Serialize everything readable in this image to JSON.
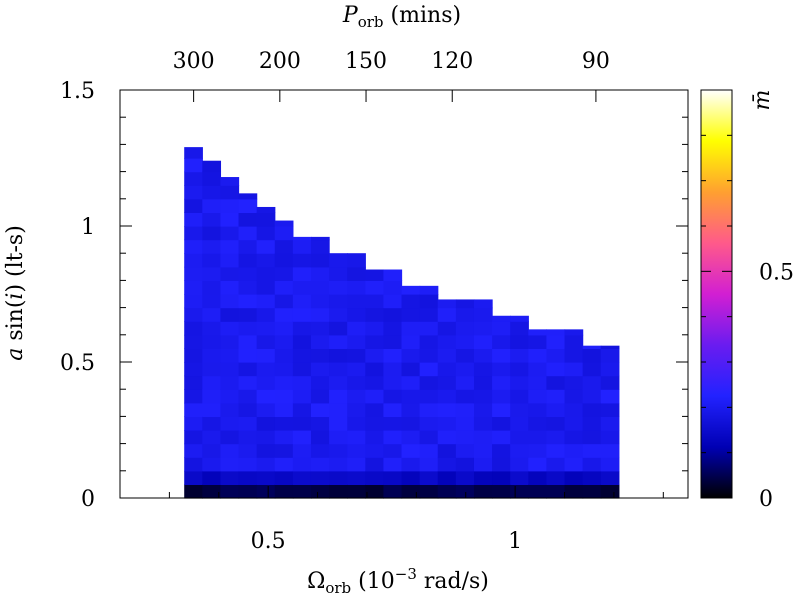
{
  "chart_data": {
    "type": "heatmap",
    "title": "",
    "xlabel": "Ω_orb (10^-3 rad/s)",
    "xlabel_parts": {
      "main": "Ω",
      "sub": "orb",
      "rest": " (10",
      "sup": "−3",
      "unit": " rad/s)"
    },
    "ylabel": "a sin(i) (lt-s)",
    "ylabel_parts": {
      "a": "a",
      "sin": " sin(",
      "i": "i",
      "rest": ")  (lt-s)"
    },
    "x2label": "P_orb (mins)",
    "x2label_parts": {
      "main": "P",
      "sub": "orb",
      "rest": " (mins)"
    },
    "colorbar_label": "m̄",
    "xlim": [
      0.2,
      1.35
    ],
    "ylim": [
      0,
      1.5
    ],
    "clim": [
      0,
      0.9
    ],
    "xticks": [
      {
        "value": 0.5,
        "label": "0.5"
      },
      {
        "value": 1,
        "label": "1"
      }
    ],
    "xminor": [
      0.3,
      0.4,
      0.6,
      0.7,
      0.8,
      0.9,
      1.1,
      1.2,
      1.3
    ],
    "yticks": [
      {
        "value": 0,
        "label": "0"
      },
      {
        "value": 0.5,
        "label": "0.5"
      },
      {
        "value": 1,
        "label": "1"
      },
      {
        "value": 1.5,
        "label": "1.5"
      }
    ],
    "yminor": [
      0.1,
      0.2,
      0.3,
      0.4,
      0.6,
      0.7,
      0.8,
      0.9,
      1.1,
      1.2,
      1.3,
      1.4
    ],
    "x2ticks": [
      {
        "period_min": 300,
        "label": "300"
      },
      {
        "period_min": 200,
        "label": "200"
      },
      {
        "period_min": 150,
        "label": "150"
      },
      {
        "period_min": 120,
        "label": "120"
      },
      {
        "period_min": 90,
        "label": "90"
      }
    ],
    "cticks": [
      {
        "value": 0,
        "label": "0"
      },
      {
        "value": 0.5,
        "label": "0.5"
      }
    ],
    "cminor": [
      0.1,
      0.2,
      0.3,
      0.4,
      0.6,
      0.7,
      0.8
    ],
    "colormap": [
      "#000000",
      "#0000b4",
      "#2222ff",
      "#6a1cf0",
      "#d21fd2",
      "#ff5a8a",
      "#ffa030",
      "#ffff00",
      "#ffffff"
    ],
    "grid_x": {
      "start": 0.33,
      "end": 1.21,
      "count": 24
    },
    "grid_y": {
      "start": 0,
      "end": 1.5,
      "count": 30
    },
    "boundary_ymax": [
      1.29,
      1.24,
      1.18,
      1.12,
      1.07,
      1.02,
      0.96,
      0.96,
      0.9,
      0.9,
      0.84,
      0.84,
      0.78,
      0.78,
      0.73,
      0.73,
      0.73,
      0.67,
      0.67,
      0.62,
      0.62,
      0.62,
      0.56,
      0.56
    ],
    "value_bottom_row": 0.03,
    "value_typical": 0.2
  }
}
